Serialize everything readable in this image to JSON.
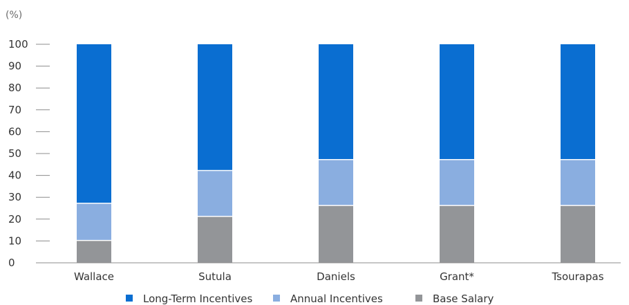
{
  "chart_data": {
    "type": "bar",
    "stacked": true,
    "ylabel": "(%)",
    "ylim": [
      0,
      100
    ],
    "yticks": [
      0,
      10,
      20,
      30,
      40,
      50,
      60,
      70,
      80,
      90,
      100
    ],
    "categories": [
      "Wallace",
      "Sutula",
      "Daniels",
      "Grant*",
      "Tsourapas"
    ],
    "series": [
      {
        "name": "Base Salary",
        "color": "#939598",
        "values": [
          10,
          21,
          26,
          26,
          26
        ]
      },
      {
        "name": "Annual Incentives",
        "color": "#8aaee0",
        "values": [
          17,
          21,
          21,
          21,
          21
        ]
      },
      {
        "name": "Long-Term Incentives",
        "color": "#0a6ed1",
        "values": [
          73,
          58,
          53,
          53,
          53
        ]
      }
    ],
    "legend": {
      "position": "bottom",
      "order": [
        "Long-Term Incentives",
        "Annual Incentives",
        "Base Salary"
      ]
    },
    "grid": false
  }
}
